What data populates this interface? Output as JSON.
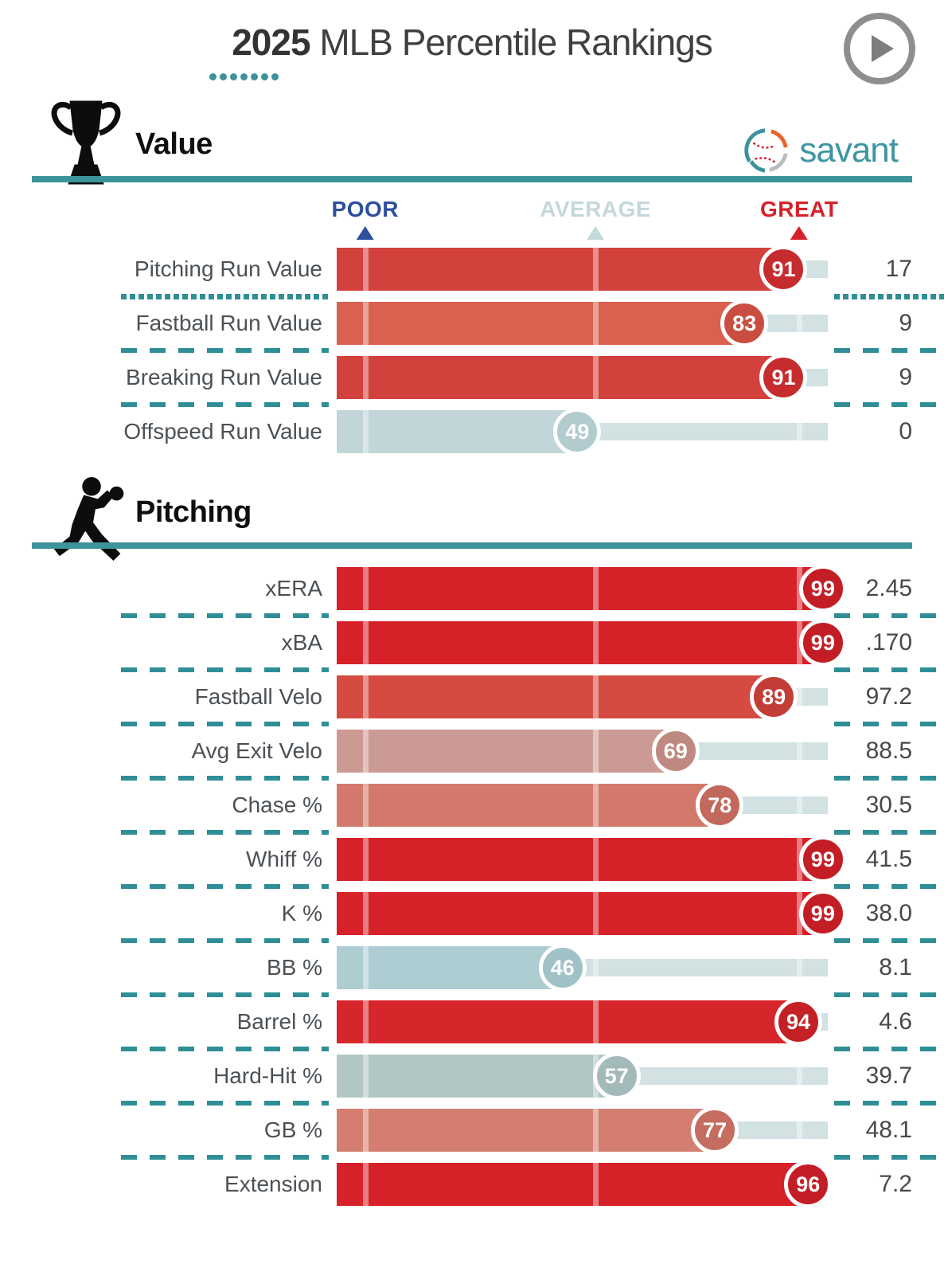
{
  "header": {
    "title_year": "2025",
    "title_rest": " MLB Percentile Rankings",
    "dots_count": 7,
    "play_button": "play"
  },
  "scale": {
    "labels": [
      "POOR",
      "AVERAGE",
      "GREAT"
    ],
    "colors": [
      "#2d4f9e",
      "#c3d8da",
      "#d6212a"
    ],
    "positions_pct": [
      5.8,
      52.7,
      94.2
    ]
  },
  "colors": {
    "accent_teal": "#3d939c",
    "divider_teal": "#2f8e96",
    "track": "#d2e1e2",
    "logo_text": "#3e95a4"
  },
  "sections": [
    {
      "title": "Value",
      "icon": "trophy-icon",
      "logo_text": "savant",
      "rows": [
        {
          "label": "Pitching Run Value",
          "percentile": 91,
          "value": "17",
          "bar_color": "#d2413c",
          "circle_color": "#c62b2e",
          "divider_after": "dotted"
        },
        {
          "label": "Fastball Run Value",
          "percentile": 83,
          "value": "9",
          "bar_color": "#da604f",
          "circle_color": "#c94e41",
          "divider_after": "dashed"
        },
        {
          "label": "Breaking Run Value",
          "percentile": 91,
          "value": "9",
          "bar_color": "#d2413c",
          "circle_color": "#c62b2e",
          "divider_after": "dashed"
        },
        {
          "label": "Offspeed Run Value",
          "percentile": 49,
          "value": "0",
          "bar_color": "#c2d5d8",
          "circle_color": "#b2cbce",
          "divider_after": "none"
        }
      ]
    },
    {
      "title": "Pitching",
      "icon": "pitcher-icon",
      "rows": [
        {
          "label": "xERA",
          "percentile": 99,
          "value": "2.45",
          "bar_color": "#d62129",
          "circle_color": "#c31e26",
          "divider_after": "dashed"
        },
        {
          "label": "xBA",
          "percentile": 99,
          "value": ".170",
          "bar_color": "#d62129",
          "circle_color": "#c31e26",
          "divider_after": "dashed"
        },
        {
          "label": "Fastball Velo",
          "percentile": 89,
          "value": "97.2",
          "bar_color": "#d54b42",
          "circle_color": "#c23d36",
          "divider_after": "dashed"
        },
        {
          "label": "Avg Exit Velo",
          "percentile": 69,
          "value": "88.5",
          "bar_color": "#cc9a94",
          "circle_color": "#bd8981",
          "divider_after": "dashed"
        },
        {
          "label": "Chase %",
          "percentile": 78,
          "value": "30.5",
          "bar_color": "#d2796c",
          "circle_color": "#c2685c",
          "divider_after": "dashed"
        },
        {
          "label": "Whiff %",
          "percentile": 99,
          "value": "41.5",
          "bar_color": "#d62129",
          "circle_color": "#c31e26",
          "divider_after": "dashed"
        },
        {
          "label": "K %",
          "percentile": 99,
          "value": "38.0",
          "bar_color": "#d62129",
          "circle_color": "#c31e26",
          "divider_after": "dashed"
        },
        {
          "label": "BB %",
          "percentile": 46,
          "value": "8.1",
          "bar_color": "#aecdd2",
          "circle_color": "#a0c1c8",
          "divider_after": "dashed"
        },
        {
          "label": "Barrel %",
          "percentile": 94,
          "value": "4.6",
          "bar_color": "#d6262b",
          "circle_color": "#c32126",
          "divider_after": "dashed"
        },
        {
          "label": "Hard-Hit %",
          "percentile": 57,
          "value": "39.7",
          "bar_color": "#b2c6c6",
          "circle_color": "#a4b9ba",
          "divider_after": "dashed"
        },
        {
          "label": "GB %",
          "percentile": 77,
          "value": "48.1",
          "bar_color": "#d47e71",
          "circle_color": "#c46d60",
          "divider_after": "dashed"
        },
        {
          "label": "Extension",
          "percentile": 96,
          "value": "7.2",
          "bar_color": "#d62129",
          "circle_color": "#c31e26",
          "divider_after": "none"
        }
      ]
    }
  ],
  "chart_data": [
    {
      "type": "bar",
      "title": "Value",
      "categories": [
        "Pitching Run Value",
        "Fastball Run Value",
        "Breaking Run Value",
        "Offspeed Run Value"
      ],
      "series": [
        {
          "name": "percentile",
          "values": [
            91,
            83,
            91,
            49
          ]
        },
        {
          "name": "stat_value",
          "values": [
            "17",
            "9",
            "9",
            "0"
          ]
        }
      ],
      "xlim": [
        0,
        100
      ],
      "markers": {
        "POOR": "low",
        "AVERAGE": "mid",
        "GREAT": "high"
      },
      "legend_position": "none",
      "grid": false
    },
    {
      "type": "bar",
      "title": "Pitching",
      "categories": [
        "xERA",
        "xBA",
        "Fastball Velo",
        "Avg Exit Velo",
        "Chase %",
        "Whiff %",
        "K %",
        "BB %",
        "Barrel %",
        "Hard-Hit %",
        "GB %",
        "Extension"
      ],
      "series": [
        {
          "name": "percentile",
          "values": [
            99,
            99,
            89,
            69,
            78,
            99,
            99,
            46,
            94,
            57,
            77,
            96
          ]
        },
        {
          "name": "stat_value",
          "values": [
            "2.45",
            ".170",
            "97.2",
            "88.5",
            "30.5",
            "41.5",
            "38.0",
            "8.1",
            "4.6",
            "39.7",
            "48.1",
            "7.2"
          ]
        }
      ],
      "xlim": [
        0,
        100
      ],
      "legend_position": "none",
      "grid": false
    }
  ]
}
